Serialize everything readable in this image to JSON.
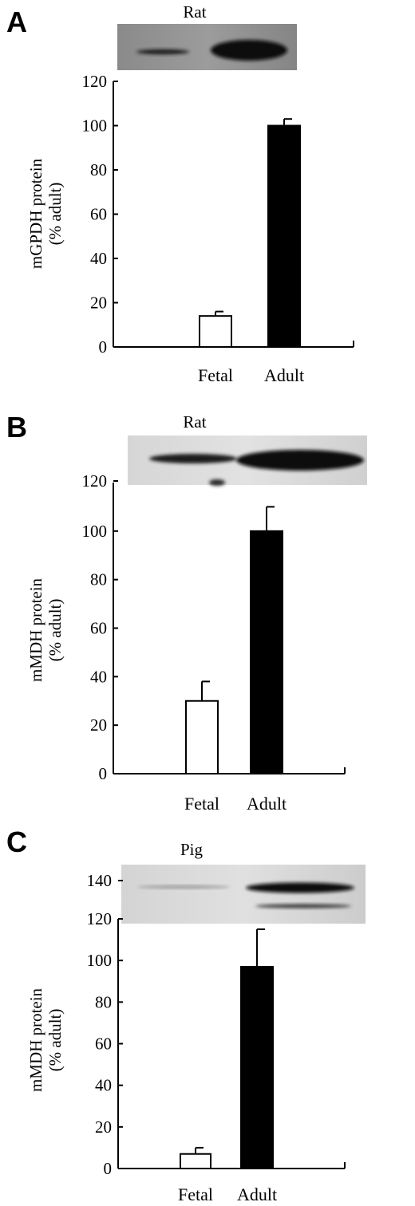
{
  "chart_data": [
    {
      "type": "bar",
      "panel": "A",
      "blot_title": "Rat",
      "ylabel_line1": "mGPDH protein",
      "ylabel_line2": "(% adult)",
      "categories": [
        "Fetal",
        "Adult"
      ],
      "values": [
        14,
        100
      ],
      "errors": [
        2,
        3
      ],
      "bar_colors": [
        "#ffffff",
        "#000000"
      ],
      "ylim": [
        0,
        120
      ],
      "yticks": [
        0,
        20,
        40,
        60,
        80,
        100,
        120
      ],
      "extra_tick_labels": []
    },
    {
      "type": "bar",
      "panel": "B",
      "blot_title": "Rat",
      "ylabel_line1": "mMDH protein",
      "ylabel_line2": "(% adult)",
      "categories": [
        "Fetal",
        "Adult"
      ],
      "values": [
        30,
        100
      ],
      "errors": [
        8,
        10
      ],
      "bar_colors": [
        "#ffffff",
        "#000000"
      ],
      "ylim": [
        0,
        120
      ],
      "yticks": [
        0,
        20,
        40,
        60,
        80,
        100
      ],
      "extra_tick_labels": [
        "120"
      ]
    },
    {
      "type": "bar",
      "panel": "C",
      "blot_title": "Pig",
      "ylabel_line1": "mMDH protein",
      "ylabel_line2": "(% adult)",
      "categories": [
        "Fetal",
        "Adult"
      ],
      "values": [
        7,
        97
      ],
      "errors": [
        3,
        18
      ],
      "bar_colors": [
        "#ffffff",
        "#000000"
      ],
      "ylim": [
        0,
        120
      ],
      "yticks": [
        0,
        20,
        40,
        60,
        80,
        100,
        120
      ],
      "extra_tick_labels": [
        "140"
      ]
    }
  ]
}
